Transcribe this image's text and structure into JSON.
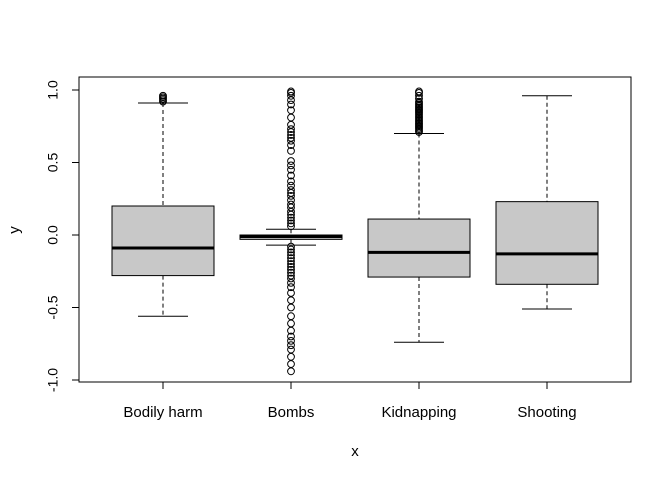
{
  "chart_data": {
    "type": "box",
    "title": "",
    "xlabel": "x",
    "ylabel": "y",
    "ylim": [
      -1.0,
      1.0
    ],
    "yticks": [
      -1.0,
      -0.5,
      0.0,
      0.5,
      1.0
    ],
    "ytick_labels": [
      "-1.0",
      "-0.5",
      "0.0",
      "0.5",
      "1.0"
    ],
    "grid": false,
    "categories": [
      "Bodily harm",
      "Bombs",
      "Kidnapping",
      "Shooting"
    ],
    "box_fill": "#c8c8c8",
    "boxes": [
      {
        "name": "Bodily harm",
        "min": -0.56,
        "q1": -0.28,
        "median": -0.09,
        "q3": 0.2,
        "max": 0.91,
        "outliers": [
          0.92,
          0.93,
          0.94,
          0.95,
          0.96
        ]
      },
      {
        "name": "Bombs",
        "min": -0.07,
        "q1": -0.03,
        "median": -0.01,
        "q3": 0.0,
        "max": 0.04,
        "outliers": [
          0.99,
          0.98,
          0.96,
          0.93,
          0.9,
          0.86,
          0.81,
          0.76,
          0.73,
          0.71,
          0.69,
          0.67,
          0.65,
          0.62,
          0.58,
          0.51,
          0.48,
          0.45,
          0.41,
          0.37,
          0.34,
          0.31,
          0.29,
          0.27,
          0.24,
          0.21,
          0.19,
          0.16,
          0.14,
          0.12,
          0.1,
          0.08,
          0.06,
          -0.08,
          -0.1,
          -0.12,
          -0.14,
          -0.16,
          -0.18,
          -0.2,
          -0.22,
          -0.24,
          -0.26,
          -0.28,
          -0.3,
          -0.33,
          -0.36,
          -0.4,
          -0.45,
          -0.5,
          -0.56,
          -0.61,
          -0.66,
          -0.7,
          -0.73,
          -0.76,
          -0.79,
          -0.84,
          -0.89,
          -0.94
        ]
      },
      {
        "name": "Kidnapping",
        "min": -0.74,
        "q1": -0.29,
        "median": -0.12,
        "q3": 0.11,
        "max": 0.7,
        "outliers": [
          0.71,
          0.72,
          0.73,
          0.74,
          0.75,
          0.76,
          0.77,
          0.78,
          0.79,
          0.8,
          0.81,
          0.82,
          0.83,
          0.84,
          0.85,
          0.86,
          0.87,
          0.88,
          0.89,
          0.9,
          0.91,
          0.92,
          0.94,
          0.96,
          0.98,
          0.99
        ]
      },
      {
        "name": "Shooting",
        "min": -0.51,
        "q1": -0.34,
        "median": -0.13,
        "q3": 0.23,
        "max": 0.96,
        "outliers": []
      }
    ]
  }
}
